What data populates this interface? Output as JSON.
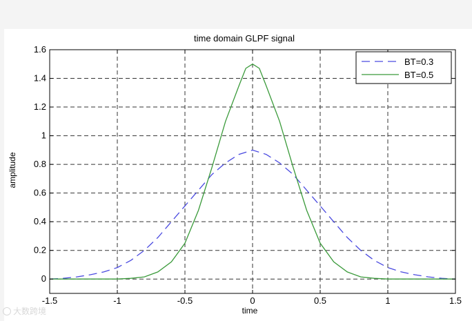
{
  "chart_data": {
    "type": "line",
    "title": "time domain GLPF signal",
    "xlabel": "time",
    "ylabel": "amplitude",
    "xlim": [
      -1.5,
      1.5
    ],
    "ylim": [
      -0.1,
      1.6
    ],
    "xticks": [
      -1.5,
      -1,
      -0.5,
      0,
      0.5,
      1,
      1.5
    ],
    "xtick_labels": [
      "-1.5",
      "-1",
      "-0.5",
      "0",
      "0.5",
      "1",
      "1.5"
    ],
    "yticks": [
      0,
      0.2,
      0.4,
      0.6,
      0.8,
      1,
      1.2,
      1.4,
      1.6
    ],
    "ytick_labels": [
      "0",
      "0.2",
      "0.4",
      "0.6",
      "0.8",
      "1",
      "1.2",
      "1.4",
      "1.6"
    ],
    "grid": true,
    "legend_position": "top-right",
    "series": [
      {
        "name": "BT=0.3",
        "color": "#4a4ae0",
        "style": "dashed",
        "x": [
          -1.5,
          -1.4,
          -1.3,
          -1.2,
          -1.1,
          -1.0,
          -0.9,
          -0.8,
          -0.7,
          -0.6,
          -0.5,
          -0.4,
          -0.3,
          -0.2,
          -0.1,
          0.0,
          0.1,
          0.2,
          0.3,
          0.4,
          0.5,
          0.6,
          0.7,
          0.8,
          0.9,
          1.0,
          1.1,
          1.2,
          1.3,
          1.4,
          1.5
        ],
        "y": [
          0.0,
          0.005,
          0.015,
          0.03,
          0.05,
          0.08,
          0.13,
          0.2,
          0.29,
          0.4,
          0.51,
          0.62,
          0.73,
          0.81,
          0.87,
          0.9,
          0.87,
          0.81,
          0.73,
          0.62,
          0.51,
          0.4,
          0.29,
          0.2,
          0.13,
          0.08,
          0.05,
          0.03,
          0.015,
          0.005,
          0.0
        ]
      },
      {
        "name": "BT=0.5",
        "color": "#3a9a3a",
        "style": "solid",
        "x": [
          -1.5,
          -1.3,
          -1.1,
          -1.0,
          -0.9,
          -0.8,
          -0.7,
          -0.6,
          -0.5,
          -0.4,
          -0.3,
          -0.2,
          -0.1,
          -0.05,
          0.0,
          0.05,
          0.1,
          0.2,
          0.3,
          0.4,
          0.5,
          0.6,
          0.7,
          0.8,
          0.9,
          1.0,
          1.1,
          1.3,
          1.5
        ],
        "y": [
          0.0,
          0.0,
          0.0,
          0.0,
          0.005,
          0.015,
          0.05,
          0.12,
          0.25,
          0.48,
          0.78,
          1.1,
          1.35,
          1.47,
          1.5,
          1.47,
          1.35,
          1.1,
          0.78,
          0.48,
          0.25,
          0.12,
          0.05,
          0.015,
          0.005,
          0.0,
          0.0,
          0.0,
          0.0
        ]
      }
    ]
  },
  "watermark": "大数跨境"
}
